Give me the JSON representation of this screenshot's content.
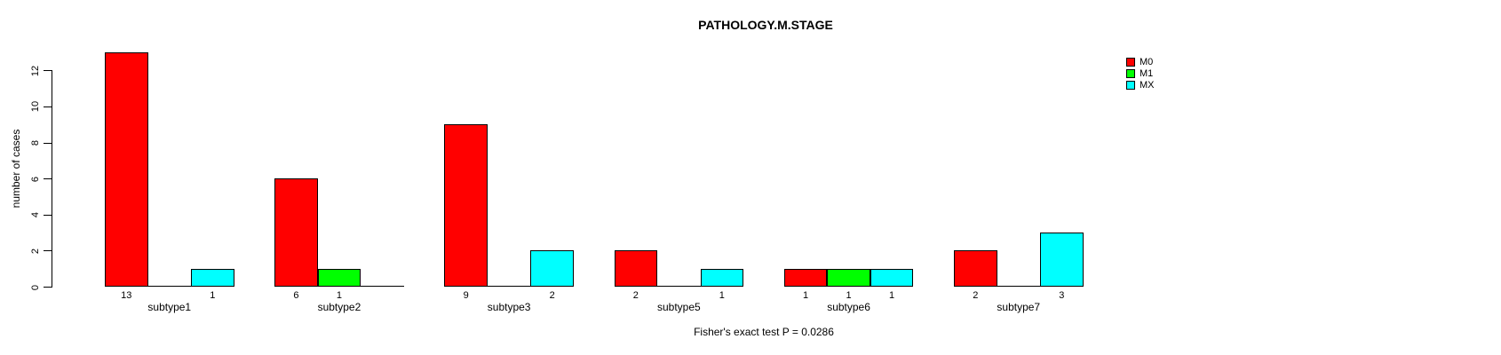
{
  "title": "PATHOLOGY.M.STAGE",
  "caption": "Fisher's exact test P = 0.0286",
  "chart_data": {
    "type": "bar",
    "grouped": true,
    "title": "PATHOLOGY.M.STAGE",
    "xlabel": "",
    "ylabel": "number of cases",
    "categories": [
      "subtype1",
      "subtype2",
      "subtype3",
      "subtype5",
      "subtype6",
      "subtype7"
    ],
    "series": [
      {
        "name": "M0",
        "color": "#ff0000",
        "values": [
          13,
          6,
          9,
          2,
          1,
          2
        ]
      },
      {
        "name": "M1",
        "color": "#00ff00",
        "values": [
          0,
          1,
          0,
          0,
          1,
          0
        ]
      },
      {
        "name": "MX",
        "color": "#00ffff",
        "values": [
          1,
          0,
          2,
          1,
          1,
          3
        ]
      }
    ],
    "yticks": [
      0,
      2,
      4,
      6,
      8,
      10,
      12
    ],
    "ylim": [
      0,
      13
    ],
    "grid": false,
    "legend_position": "top-right",
    "bar_value_labels": "shown below each nonzero bar",
    "zero_bars": "drawn as flat line segments at baseline",
    "annotation": "Fisher's exact test P = 0.0286"
  }
}
